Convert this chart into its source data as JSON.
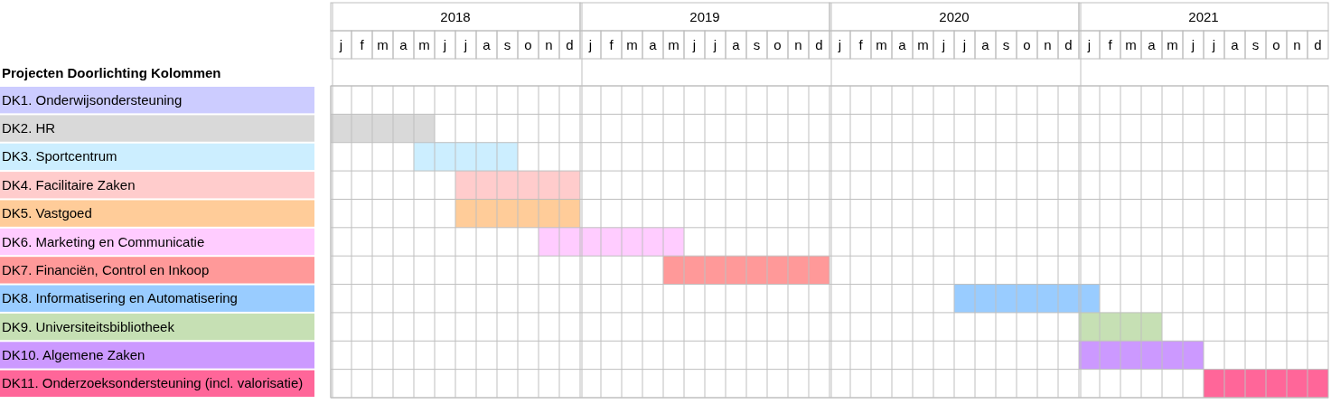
{
  "chart_data": {
    "type": "bar",
    "orientation": "horizontal",
    "title": "Projecten Doorlichting Kolommen",
    "categories": [
      "DK1. Onderwijsondersteuning",
      "DK2. HR",
      "DK3. Sportcentrum",
      "DK4. Facilitaire Zaken",
      "DK5. Vastgoed",
      "DK6. Marketing en Communicatie",
      "DK7. Financiën, Control en Inkoop",
      "DK8. Informatisering en Automatisering",
      "DK9. Universiteitsbibliotheek",
      "DK10. Algemene Zaken",
      "DK11. Onderzoeksondersteuning (incl. valorisatie)"
    ],
    "values": [
      null,
      0.417,
      0.417,
      0.5,
      0.5,
      0.583,
      0.667,
      0.583,
      0.333,
      0.5,
      0.5
    ],
    "base": [
      null,
      2018,
      2018.333,
      2018.5,
      2018.5,
      2018.833,
      2019.333,
      2020.5,
      2021,
      2021,
      2021.5
    ],
    "colors": [
      "#ccccff",
      "#d9d9d9",
      "#cceeff",
      "#ffcccc",
      "#ffcc99",
      "#ffccff",
      "#ff9999",
      "#99ccff",
      "#c6e0b4",
      "#cc99ff",
      "#ff6699"
    ],
    "xlim": [
      2018,
      2022
    ],
    "xticks": [
      {
        "value": 2018.5,
        "label": "2018"
      },
      {
        "value": 2019.5,
        "label": "2019"
      },
      {
        "value": 2020.5,
        "label": "2020"
      },
      {
        "value": 2021.5,
        "label": "2021"
      }
    ],
    "annotations": [
      "j",
      "f",
      "m",
      "a",
      "m",
      "j",
      "j",
      "a",
      "s",
      "o",
      "n",
      "d",
      "j",
      "f",
      "m",
      "a",
      "m",
      "j",
      "j",
      "a",
      "s",
      "o",
      "n",
      "d",
      "j",
      "f",
      "m",
      "a",
      "m",
      "j",
      "j",
      "a",
      "s",
      "o",
      "n",
      "d",
      "j",
      "f",
      "m",
      "a",
      "m",
      "j",
      "j",
      "a",
      "s",
      "o",
      "n",
      "d"
    ],
    "grid": true
  }
}
